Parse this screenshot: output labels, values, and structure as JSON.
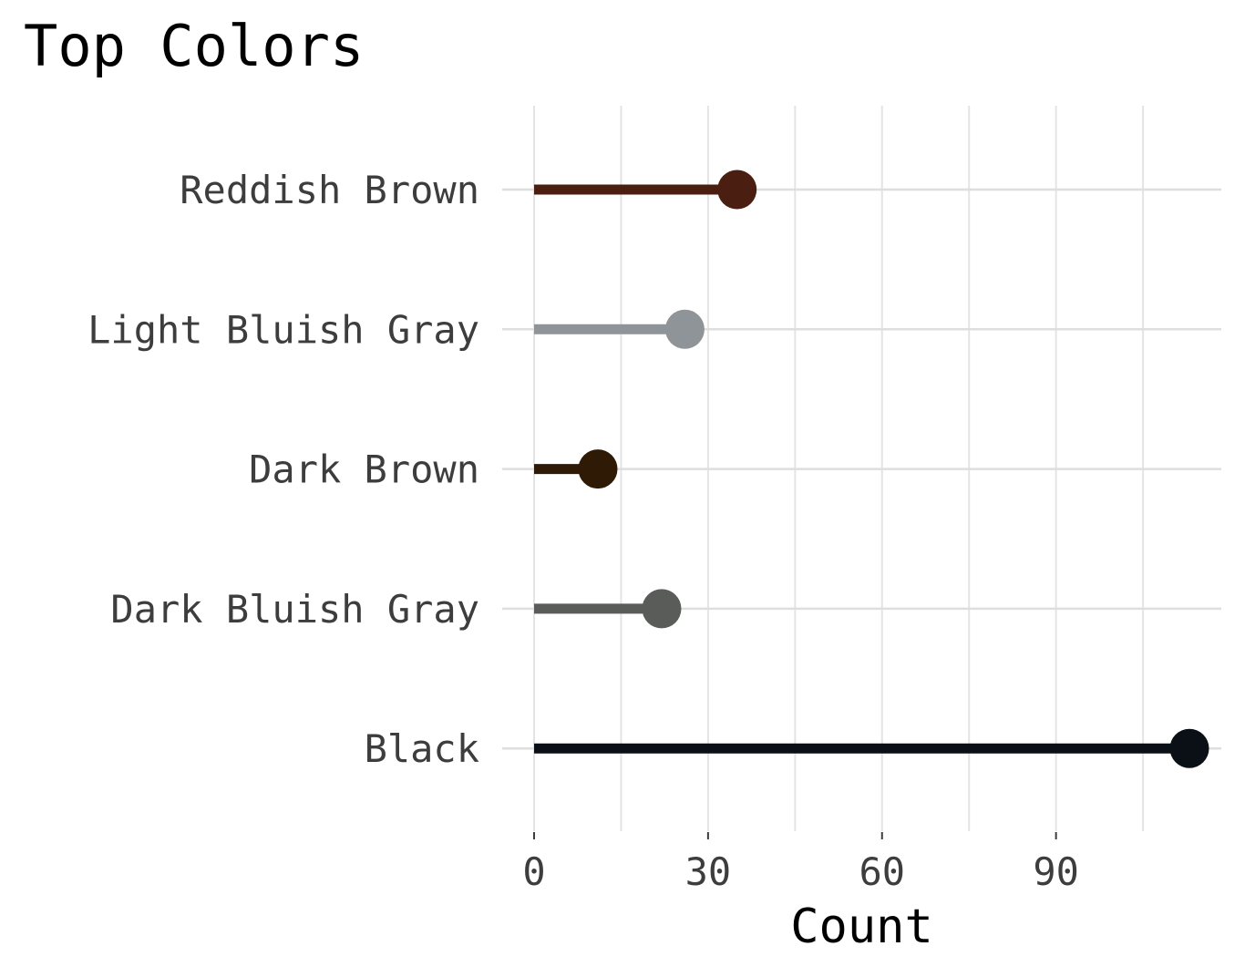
{
  "chart_data": {
    "type": "lollipop",
    "title": "Top Colors",
    "xlabel": "Count",
    "ylabel": "",
    "categories": [
      "Reddish Brown",
      "Light Bluish Gray",
      "Dark Brown",
      "Dark Bluish Gray",
      "Black"
    ],
    "values": [
      35,
      26,
      11,
      22,
      113
    ],
    "colors": [
      "#4a1e10",
      "#8f9499",
      "#2e1a05",
      "#595c59",
      "#0b1017"
    ],
    "xticks": [
      0,
      30,
      60,
      90
    ],
    "xlim": [
      -5.5,
      118.5
    ],
    "grid": true,
    "legend": "none"
  }
}
